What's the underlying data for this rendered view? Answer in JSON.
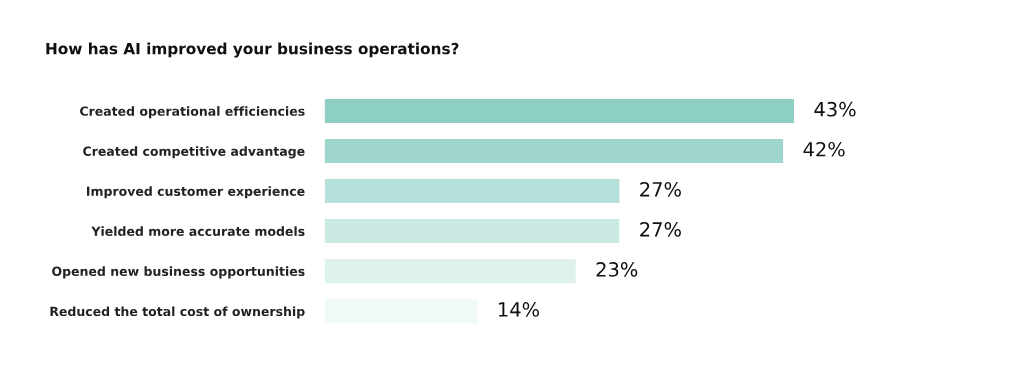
{
  "chart_data": {
    "type": "bar",
    "orientation": "horizontal",
    "title": "How has AI improved your business operations?",
    "categories": [
      "Created operational efficiencies",
      "Created competitive advantage",
      "Improved customer experience",
      "Yielded more accurate models",
      "Opened new business opportunities",
      "Reduced the total cost of ownership"
    ],
    "values": [
      43,
      42,
      27,
      27,
      23,
      14
    ],
    "colors": [
      "#8ecfc4",
      "#9ed6cc",
      "#b6e1da",
      "#cae9e3",
      "#e0f2ee",
      "#effaf7"
    ],
    "value_labels": [
      "43%",
      "42%",
      "27%",
      "27%",
      "23%",
      "14%"
    ],
    "grid": false,
    "legend": false
  }
}
